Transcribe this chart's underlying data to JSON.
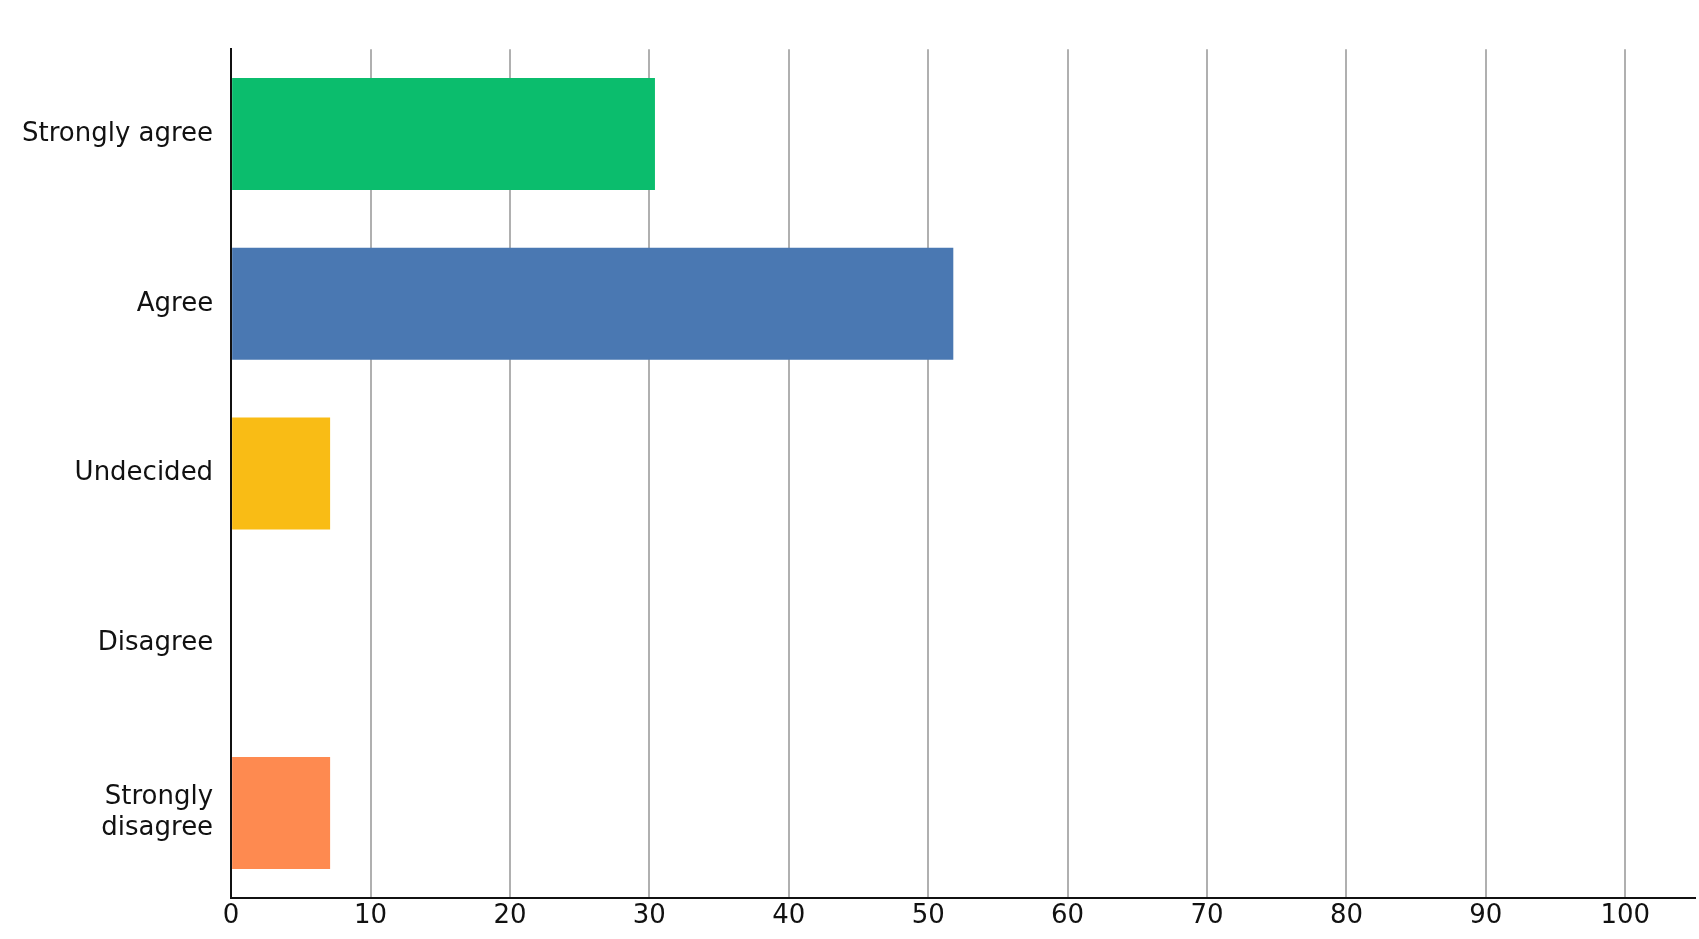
{
  "chart_data": {
    "type": "bar",
    "orientation": "horizontal",
    "categories": [
      "Strongly agree",
      "Agree",
      "Undecided",
      "Disagree",
      "Strongly disagree"
    ],
    "values": [
      30.4,
      51.8,
      7.1,
      0,
      7.1
    ],
    "colors": [
      "#0bbd6d",
      "#4a78b2",
      "#f9bc15",
      "#9e9e9e",
      "#fe8a50"
    ],
    "xlim": [
      0,
      105
    ],
    "xticks": [
      0,
      10,
      20,
      30,
      40,
      50,
      60,
      70,
      80,
      90,
      100
    ],
    "grid": "x",
    "legend": false
  }
}
